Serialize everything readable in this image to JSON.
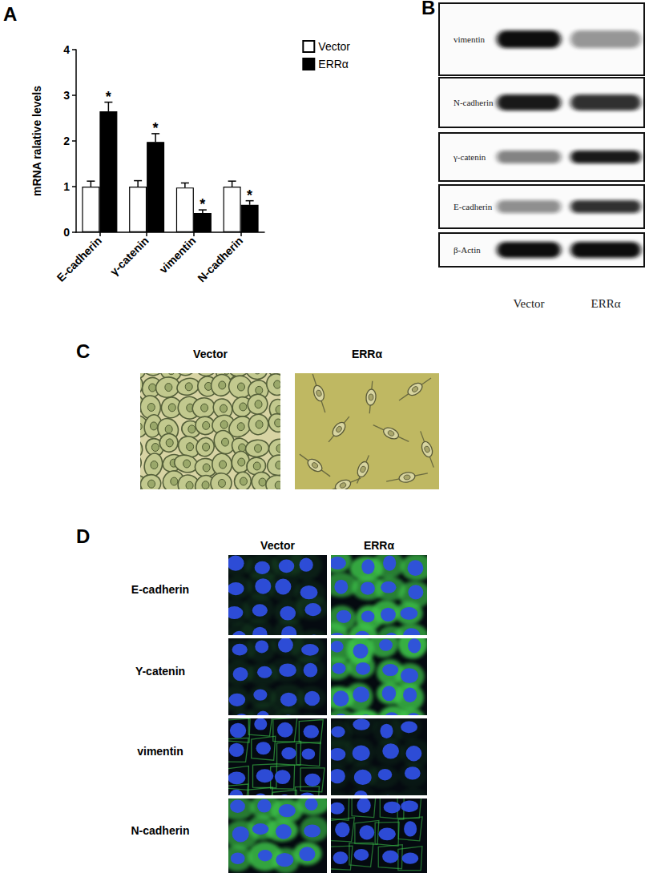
{
  "chart_data": {
    "type": "bar",
    "y_label": "mRNA ralative levels",
    "categories": [
      "E-cadherin",
      "γ-catenin",
      "vimentin",
      "N-cadherin"
    ],
    "ylim": [
      0,
      4
    ],
    "yticks": [
      0,
      1,
      2,
      3,
      4
    ],
    "grid": false,
    "legend": "upper right",
    "series": [
      {
        "name": "Vector",
        "color": "#ffffff",
        "values": [
          1,
          1,
          0.98,
          1
        ],
        "errors": [
          0.12,
          0.13,
          0.1,
          0.12
        ]
      },
      {
        "name": "ERRα",
        "color": "#000000",
        "values": [
          2.65,
          1.98,
          0.42,
          0.6
        ],
        "errors": [
          0.2,
          0.18,
          0.07,
          0.09
        ],
        "significance": [
          "*",
          "*",
          "*",
          "*"
        ]
      }
    ]
  },
  "figure": {
    "panel_labels": [
      "A",
      "B",
      "C",
      "D"
    ],
    "blot": {
      "rows": [
        "vimentin",
        "N-cadherin",
        "γ-catenin",
        "E-cadherin",
        "β-Actin"
      ],
      "lanes": [
        "Vector",
        "ERRα"
      ]
    },
    "morphology": {
      "columns": [
        "Vector",
        "ERRα"
      ]
    },
    "immunofluorescence": {
      "columns": [
        "Vector",
        "ERRα"
      ],
      "rows": [
        "E-cadherin",
        "Y-catenin",
        "vimentin",
        "N-cadherin"
      ]
    }
  }
}
